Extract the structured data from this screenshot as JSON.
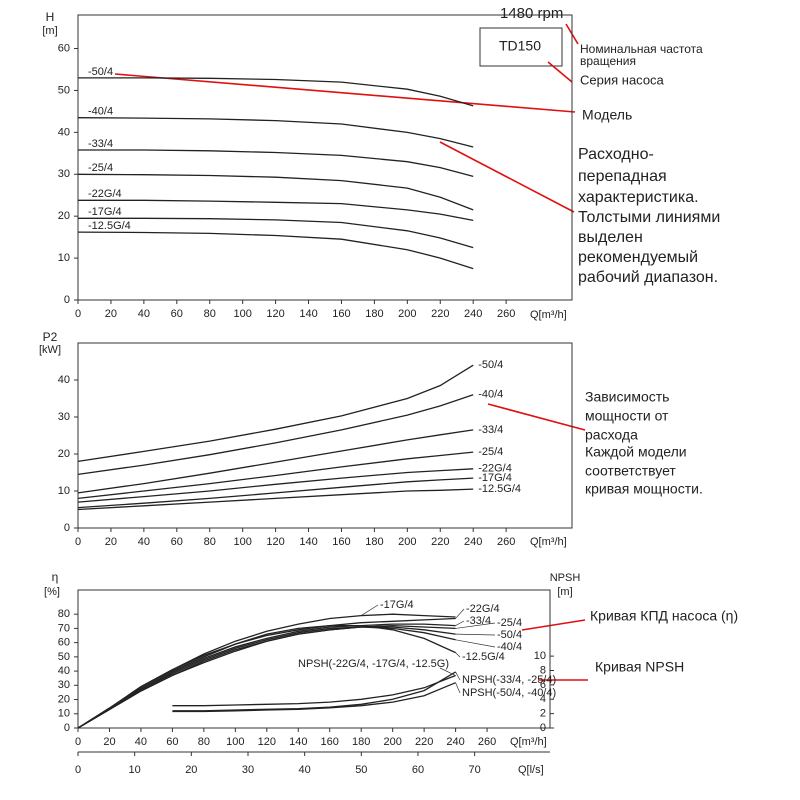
{
  "chart_data": [
    {
      "type": "line",
      "ylabel": "H",
      "yunit": "[m]",
      "xlabel": "Q[m³/h]",
      "xlim": [
        0,
        300
      ],
      "xticks": [
        0,
        20,
        40,
        60,
        80,
        100,
        120,
        140,
        160,
        180,
        200,
        220,
        240,
        260
      ],
      "ylim": [
        0,
        68
      ],
      "yticks": [
        0,
        10,
        20,
        30,
        40,
        50,
        60
      ],
      "x": [
        0,
        40,
        80,
        120,
        160,
        200,
        220,
        240
      ],
      "series": [
        {
          "name": "-50/4",
          "color": "#222",
          "values": [
            53,
            53,
            52.9,
            52.6,
            52,
            50.3,
            48.6,
            46.3
          ]
        },
        {
          "name": "-40/4",
          "color": "#222",
          "values": [
            43.5,
            43.4,
            43.2,
            42.8,
            42,
            40,
            38.5,
            36.5
          ]
        },
        {
          "name": "-33/4",
          "color": "#222",
          "values": [
            35.8,
            35.8,
            35.6,
            35.2,
            34.5,
            33,
            31.6,
            29.5
          ]
        },
        {
          "name": "-25/4",
          "color": "#222",
          "values": [
            30,
            29.9,
            29.7,
            29.3,
            28.5,
            26.7,
            24.5,
            21.5
          ]
        },
        {
          "name": "-22G/4",
          "color": "#222",
          "values": [
            23.8,
            23.8,
            23.6,
            23.3,
            23,
            21.5,
            20.5,
            19
          ]
        },
        {
          "name": "-17G/4",
          "color": "#222",
          "values": [
            19.5,
            19.5,
            19.4,
            19.1,
            18.5,
            16.5,
            14.8,
            12.5
          ]
        },
        {
          "name": "-12.5G/4",
          "color": "#222",
          "values": [
            16.2,
            16.1,
            15.9,
            15.4,
            14.5,
            12,
            10,
            7.5
          ]
        }
      ],
      "annotations": [
        "1480 rpm",
        "TD150",
        "Номинальная частота",
        "вращения",
        "Серия насоса",
        "Модель",
        "Расходно-",
        "перепадная",
        "характеристика.",
        "Толстыми линиями",
        "выделен",
        "рекомендуемый",
        "рабочий диапазон."
      ]
    },
    {
      "type": "line",
      "ylabel": "P2",
      "yunit": "[kW]",
      "xlabel": "Q[m³/h]",
      "xlim": [
        0,
        300
      ],
      "xticks": [
        0,
        20,
        40,
        60,
        80,
        100,
        120,
        140,
        160,
        180,
        200,
        220,
        240,
        260
      ],
      "ylim": [
        0,
        50
      ],
      "yticks": [
        0,
        10,
        20,
        30,
        40
      ],
      "x": [
        0,
        40,
        80,
        120,
        160,
        200,
        220,
        240
      ],
      "series": [
        {
          "name": "-50/4",
          "color": "#222",
          "values": [
            18,
            20.7,
            23.5,
            26.7,
            30.3,
            35,
            38.5,
            44
          ]
        },
        {
          "name": "-40/4",
          "color": "#222",
          "values": [
            14.5,
            17,
            19.8,
            23,
            26.5,
            30.5,
            33,
            36
          ]
        },
        {
          "name": "-33/4",
          "color": "#222",
          "values": [
            9.5,
            12,
            14.8,
            17.8,
            20.8,
            23.8,
            25.2,
            26.5
          ]
        },
        {
          "name": "-25/4",
          "color": "#222",
          "values": [
            8,
            10,
            12,
            14.2,
            16.5,
            18.7,
            19.6,
            20.5
          ]
        },
        {
          "name": "-22G/4",
          "color": "#222",
          "values": [
            7,
            8.5,
            10,
            11.8,
            13.5,
            15,
            15.5,
            16
          ]
        },
        {
          "name": "-17G/4",
          "color": "#222",
          "values": [
            5.5,
            6.7,
            8,
            9.5,
            11,
            12.5,
            13,
            13.5
          ]
        },
        {
          "name": "-12.5G/4",
          "color": "#222",
          "values": [
            5,
            6,
            7,
            8,
            9,
            10,
            10.2,
            10.5
          ]
        }
      ],
      "annotations": [
        "Зависимость",
        "мощности от",
        "расхода",
        "Каждой модели",
        "соответствует",
        "кривая мощности."
      ]
    },
    {
      "type": "line",
      "ylabel": "η",
      "yunit": "[%]",
      "y2label": "NPSH",
      "y2unit": "[m]",
      "xlabel": "Q[m³/h]",
      "x2label": "Q[l/s]",
      "xlim": [
        0,
        300
      ],
      "xticks": [
        0,
        20,
        40,
        60,
        80,
        100,
        120,
        140,
        160,
        180,
        200,
        220,
        240,
        260
      ],
      "x2lim": [
        0,
        83.3
      ],
      "x2ticks": [
        0,
        10,
        20,
        30,
        40,
        50,
        60,
        70
      ],
      "ylim": [
        0,
        97
      ],
      "yticks": [
        0,
        10,
        20,
        30,
        40,
        50,
        60,
        70,
        80
      ],
      "y2lim": [
        0,
        19.2
      ],
      "y2ticks": [
        0,
        2,
        4,
        6,
        8,
        10
      ],
      "x": [
        0,
        20,
        40,
        60,
        80,
        100,
        120,
        140,
        160,
        180,
        200,
        220,
        240
      ],
      "series": [
        {
          "name": "-22G/4",
          "color": "#222",
          "values": [
            0,
            14,
            29,
            41,
            51,
            59,
            65,
            69,
            72,
            74,
            75,
            76,
            77
          ]
        },
        {
          "name": "-17G/4",
          "color": "#222",
          "values": [
            0,
            14,
            29,
            41,
            52,
            61,
            68,
            73,
            77,
            79,
            80,
            79,
            78
          ]
        },
        {
          "name": "-33/4",
          "color": "#222",
          "values": [
            0,
            13,
            27,
            39,
            49,
            57,
            63,
            68,
            71,
            72,
            73,
            73,
            72
          ]
        },
        {
          "name": "-25/4",
          "color": "#222",
          "values": [
            0,
            13,
            27,
            38,
            48,
            56,
            62,
            67,
            70,
            71,
            72,
            71,
            70
          ]
        },
        {
          "name": "-50/4",
          "color": "#222",
          "values": [
            0,
            13,
            26,
            37,
            47,
            55,
            61,
            66,
            69,
            71,
            71,
            69,
            66
          ]
        },
        {
          "name": "-40/4",
          "color": "#222",
          "values": [
            0,
            13,
            26,
            37,
            46,
            54,
            61,
            66,
            69,
            71,
            70,
            67,
            62
          ]
        },
        {
          "name": "-12.5G/4",
          "color": "#222",
          "values": [
            0,
            14,
            28,
            40,
            50,
            59,
            66,
            70,
            72,
            72,
            69,
            63,
            53
          ]
        },
        {
          "name": "NPSH(-22G/4, -17G/4, -12.5G)",
          "color": "#222",
          "axis": "y2",
          "x": [
            60,
            80,
            100,
            120,
            140,
            160,
            180,
            200,
            220,
            240
          ],
          "values": [
            3.1,
            3.1,
            3.2,
            3.3,
            3.4,
            3.6,
            4,
            4.6,
            5.6,
            7.3
          ]
        },
        {
          "name": "NPSH(-33/4, -25/4)",
          "color": "#222",
          "axis": "y2",
          "x": [
            60,
            80,
            100,
            120,
            140,
            160,
            180,
            200,
            220,
            240
          ],
          "values": [
            2.4,
            2.4,
            2.5,
            2.6,
            2.7,
            2.9,
            3.3,
            4,
            5.2,
            7.8
          ]
        },
        {
          "name": "NPSH(-50/4, -40/4)",
          "color": "#222",
          "axis": "y2",
          "x": [
            60,
            80,
            100,
            120,
            140,
            160,
            180,
            200,
            220,
            240
          ],
          "values": [
            2.3,
            2.3,
            2.4,
            2.5,
            2.6,
            2.8,
            3.1,
            3.6,
            4.5,
            6.3
          ]
        }
      ],
      "annotations": [
        "Кривая КПД насоса (η)",
        "Кривая NPSH"
      ]
    }
  ]
}
